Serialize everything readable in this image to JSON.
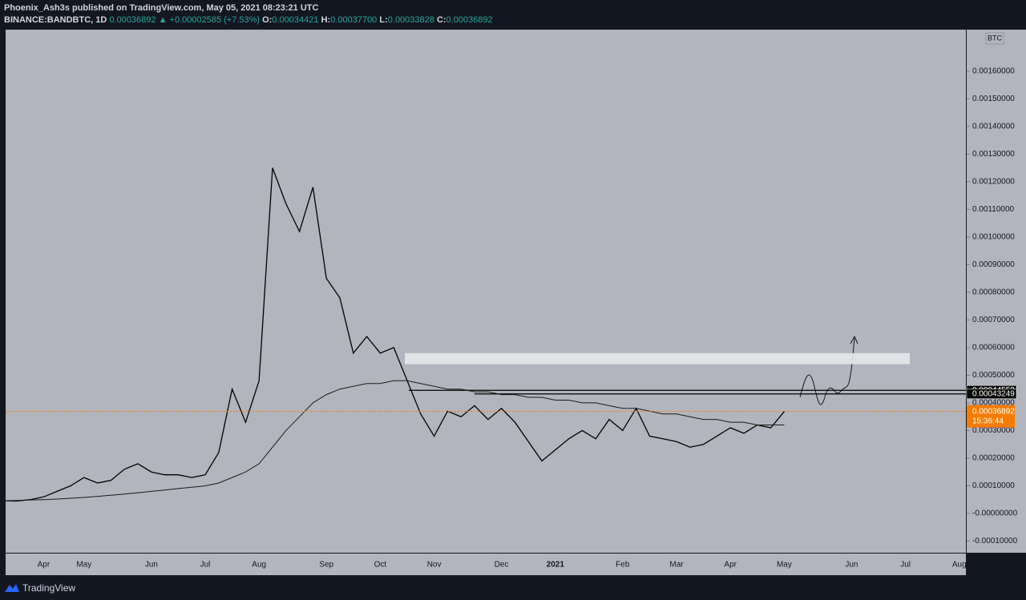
{
  "header": {
    "publisher": "Phoenix_Ash3s published on TradingView.com, May 05, 2021 08:23:21 UTC",
    "symbol": "BINANCE:BANDBTC, 1D",
    "last": "0.00036892",
    "arrow": "▲",
    "change": "+0.00002585 (+7.53%)",
    "open_label": "O:",
    "open": "0.00034421",
    "high_label": "H:",
    "high": "0.00037700",
    "low_label": "L:",
    "low": "0.00033828",
    "close_label": "C:",
    "close": "0.00036892"
  },
  "footer": {
    "brand": "TradingView"
  },
  "chart_data": {
    "type": "line",
    "currency": "BTC",
    "countdown": "15:36:44",
    "categories": [
      null,
      null,
      null,
      "Apr",
      null,
      null,
      "May",
      null,
      null,
      null,
      null,
      "Jun",
      null,
      null,
      null,
      "Jul",
      null,
      null,
      null,
      "Aug",
      null,
      null,
      null,
      null,
      "Sep",
      null,
      null,
      null,
      "Oct",
      null,
      null,
      null,
      "Nov",
      null,
      null,
      null,
      null,
      "Dec",
      null,
      null,
      null,
      "2021",
      null,
      null,
      null,
      null,
      "Feb",
      null,
      null,
      null,
      "Mar",
      null,
      null,
      null,
      "Apr",
      null,
      null,
      null,
      "May",
      null,
      null,
      null,
      null,
      "Jun",
      null,
      null,
      null,
      "Jul",
      null,
      null,
      null,
      "Aug"
    ],
    "series": [
      {
        "name": "BANDBTC",
        "color": "#000000",
        "values": [
          4.6e-05,
          4.5e-05,
          5e-05,
          6e-05,
          8e-05,
          0.0001,
          0.00013,
          0.00011,
          0.00012,
          0.00016,
          0.00018,
          0.00015,
          0.00014,
          0.00014,
          0.00013,
          0.00014,
          0.00022,
          0.00045,
          0.00033,
          0.00048,
          0.00125,
          0.00112,
          0.00102,
          0.00118,
          0.00085,
          0.00078,
          0.00058,
          0.00064,
          0.00058,
          0.0006,
          0.00048,
          0.00036,
          0.00028,
          0.00037,
          0.00035,
          0.00039,
          0.00034,
          0.00038,
          0.00033,
          0.00026,
          0.00019,
          0.00023,
          0.00027,
          0.0003,
          0.00027,
          0.00034,
          0.0003,
          0.00038,
          0.00028,
          0.00027,
          0.00026,
          0.00024,
          0.00025,
          0.00028,
          0.00031,
          0.00029,
          0.00032,
          0.00031,
          0.00036892,
          null,
          null,
          null,
          null,
          null,
          null,
          null,
          null,
          null,
          null,
          null,
          null,
          null
        ]
      },
      {
        "name": "MA",
        "color": "#1a1a1a",
        "values": [
          4.6e-05,
          4.7e-05,
          4.9e-05,
          5e-05,
          5.2e-05,
          5.5e-05,
          5.8e-05,
          6.2e-05,
          6.6e-05,
          7e-05,
          7.5e-05,
          8e-05,
          8.5e-05,
          9e-05,
          9.5e-05,
          0.0001,
          0.00011,
          0.00013,
          0.00015,
          0.00018,
          0.00024,
          0.0003,
          0.00035,
          0.0004,
          0.00043,
          0.00045,
          0.00046,
          0.00047,
          0.00047,
          0.00048,
          0.00048,
          0.00047,
          0.00046,
          0.00045,
          0.00045,
          0.00044,
          0.00044,
          0.00043,
          0.00043,
          0.00042,
          0.00042,
          0.00041,
          0.00041,
          0.0004,
          0.0004,
          0.00039,
          0.00038,
          0.00038,
          0.00037,
          0.00036,
          0.00036,
          0.00035,
          0.00034,
          0.00034,
          0.00033,
          0.00033,
          0.00032,
          0.00032,
          0.00032,
          null,
          null,
          null,
          null,
          null,
          null,
          null,
          null,
          null,
          null,
          null,
          null,
          null
        ]
      }
    ],
    "levels": [
      0.00044552,
      0.00043249
    ],
    "zone": [
      0.00054,
      0.00058
    ],
    "ylim": [
      -0.000142,
      0.00175
    ],
    "yticks": [
      {
        "value": -0.0001,
        "label": "-0.00010000"
      },
      {
        "value": 0,
        "label": "-0.00000000"
      },
      {
        "value": 0.0001,
        "label": "0.00010000"
      },
      {
        "value": 0.0002,
        "label": "0.00020000"
      },
      {
        "value": 0.0003,
        "label": "0.00030000"
      },
      {
        "value": 0.0004,
        "label": "0.00040000"
      },
      {
        "value": 0.0005,
        "label": "0.00050000"
      },
      {
        "value": 0.0006,
        "label": "0.00060000"
      },
      {
        "value": 0.0007,
        "label": "0.00070000"
      },
      {
        "value": 0.0008,
        "label": "0.00080000"
      },
      {
        "value": 0.0009,
        "label": "0.00090000"
      },
      {
        "value": 0.001,
        "label": "0.00100000"
      },
      {
        "value": 0.0011,
        "label": "0.00110000"
      },
      {
        "value": 0.0012,
        "label": "0.00120000"
      },
      {
        "value": 0.0013,
        "label": "0.00130000"
      },
      {
        "value": 0.0014,
        "label": "0.00140000"
      },
      {
        "value": 0.0015,
        "label": "0.00150000"
      },
      {
        "value": 0.0016,
        "label": "0.00160000"
      }
    ],
    "grid": false
  }
}
